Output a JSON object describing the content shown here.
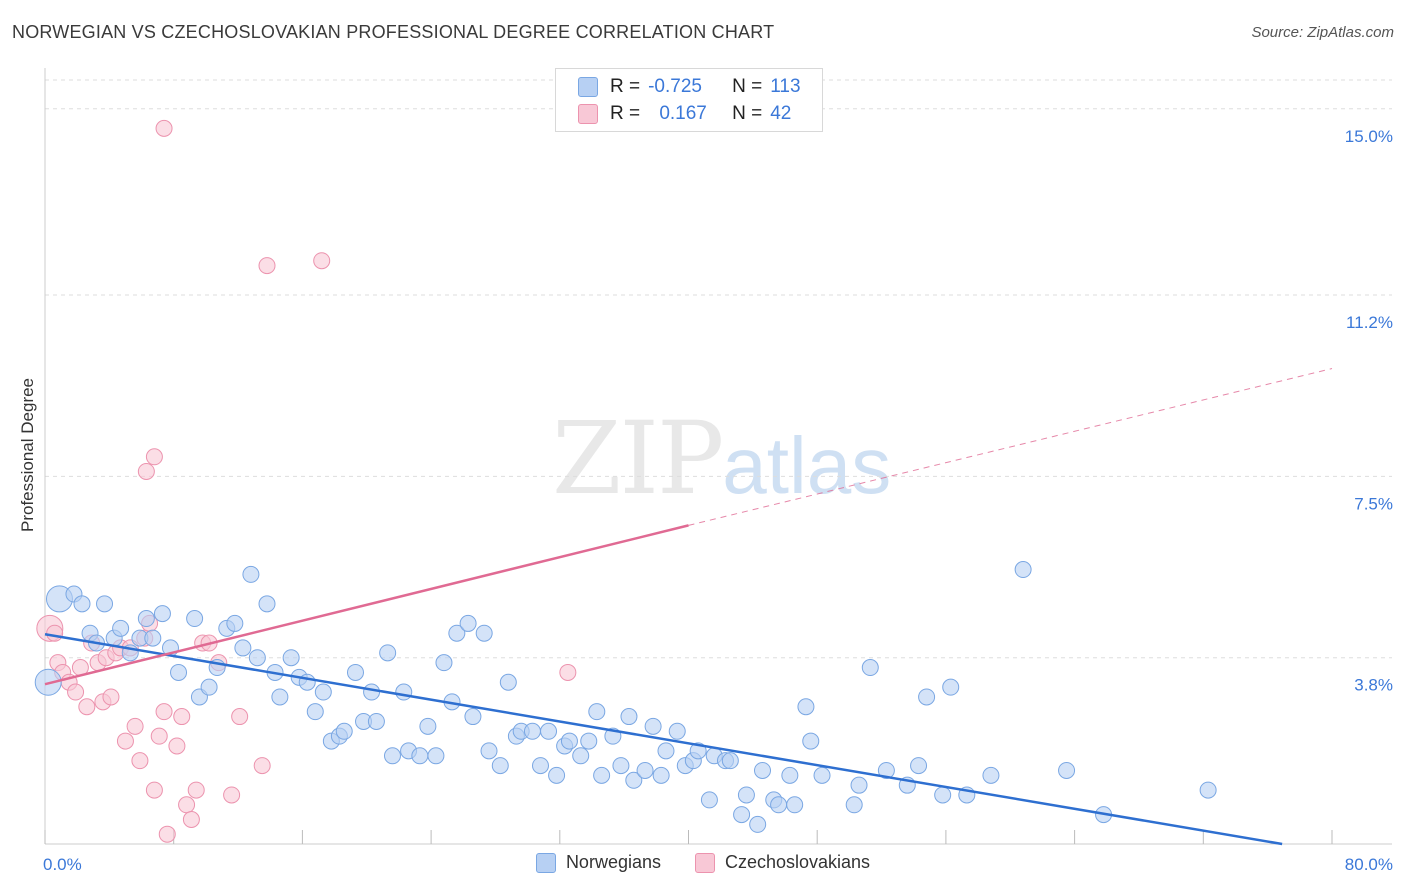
{
  "header": {
    "title": "NORWEGIAN VS CZECHOSLOVAKIAN PROFESSIONAL DEGREE CORRELATION CHART",
    "source": "Source: ZipAtlas.com"
  },
  "watermark": {
    "zip": "ZIP",
    "atlas": "atlas"
  },
  "legend_top": {
    "rows": [
      {
        "r_label": "R =",
        "r_value": "-0.725",
        "n_label": "N =",
        "n_value": "113"
      },
      {
        "r_label": "R =",
        "r_value": "0.167",
        "n_label": "N =",
        "n_value": "42"
      }
    ]
  },
  "legend_bottom": {
    "items": [
      "Norwegians",
      "Czechoslovakians"
    ]
  },
  "colors": {
    "blue_fill": "#b7d0f3",
    "blue_stroke": "#7aa7e3",
    "blue_line": "#2e6fd0",
    "pink_fill": "#f8c8d6",
    "pink_stroke": "#ec93ae",
    "pink_line": "#e06a93",
    "tick_label": "#3b78d8",
    "grid": "#dddddd"
  },
  "chart_data": {
    "type": "scatter",
    "title": "NORWEGIAN VS CZECHOSLOVAKIAN PROFESSIONAL DEGREE CORRELATION CHART",
    "xlabel": "",
    "ylabel": "Professional Degree",
    "xlim": [
      0,
      80
    ],
    "ylim": [
      0,
      15.75
    ],
    "x_tick_labels": [
      "0.0%",
      "80.0%"
    ],
    "y_ticks": [
      3.8,
      7.5,
      11.2,
      15.0
    ],
    "y_tick_labels": [
      "3.8%",
      "7.5%",
      "11.2%",
      "15.0%"
    ],
    "grid": true,
    "legend_position": "bottom",
    "series": [
      {
        "name": "Norwegians",
        "r": -0.725,
        "n": 113,
        "trend": {
          "x": [
            0,
            76.9
          ],
          "y": [
            4.28,
            0.0
          ]
        },
        "points": [
          [
            0.2,
            3.3
          ],
          [
            0.9,
            5.0
          ],
          [
            1.8,
            5.1
          ],
          [
            2.3,
            4.9
          ],
          [
            2.8,
            4.3
          ],
          [
            3.2,
            4.1
          ],
          [
            3.7,
            4.9
          ],
          [
            4.3,
            4.2
          ],
          [
            4.7,
            4.4
          ],
          [
            5.3,
            3.9
          ],
          [
            5.9,
            4.2
          ],
          [
            6.3,
            4.6
          ],
          [
            6.7,
            4.2
          ],
          [
            7.3,
            4.7
          ],
          [
            7.8,
            4.0
          ],
          [
            8.3,
            3.5
          ],
          [
            9.3,
            4.6
          ],
          [
            9.6,
            3.0
          ],
          [
            10.2,
            3.2
          ],
          [
            10.7,
            3.6
          ],
          [
            11.3,
            4.4
          ],
          [
            11.8,
            4.5
          ],
          [
            12.3,
            4.0
          ],
          [
            12.8,
            5.5
          ],
          [
            13.2,
            3.8
          ],
          [
            13.8,
            4.9
          ],
          [
            14.3,
            3.5
          ],
          [
            14.6,
            3.0
          ],
          [
            15.3,
            3.8
          ],
          [
            15.8,
            3.4
          ],
          [
            16.3,
            3.3
          ],
          [
            16.8,
            2.7
          ],
          [
            17.3,
            3.1
          ],
          [
            17.8,
            2.1
          ],
          [
            18.3,
            2.2
          ],
          [
            18.6,
            2.3
          ],
          [
            19.3,
            3.5
          ],
          [
            19.8,
            2.5
          ],
          [
            20.3,
            3.1
          ],
          [
            20.6,
            2.5
          ],
          [
            21.3,
            3.9
          ],
          [
            21.6,
            1.8
          ],
          [
            22.3,
            3.1
          ],
          [
            22.6,
            1.9
          ],
          [
            23.3,
            1.8
          ],
          [
            23.8,
            2.4
          ],
          [
            24.3,
            1.8
          ],
          [
            24.8,
            3.7
          ],
          [
            25.3,
            2.9
          ],
          [
            25.6,
            4.3
          ],
          [
            26.3,
            4.5
          ],
          [
            26.6,
            2.6
          ],
          [
            27.3,
            4.3
          ],
          [
            27.6,
            1.9
          ],
          [
            28.3,
            1.6
          ],
          [
            28.8,
            3.3
          ],
          [
            29.3,
            2.2
          ],
          [
            29.6,
            2.3
          ],
          [
            30.3,
            2.3
          ],
          [
            30.8,
            1.6
          ],
          [
            31.3,
            2.3
          ],
          [
            31.8,
            1.4
          ],
          [
            32.3,
            2.0
          ],
          [
            32.6,
            2.1
          ],
          [
            33.3,
            1.8
          ],
          [
            33.8,
            2.1
          ],
          [
            34.3,
            2.7
          ],
          [
            34.6,
            1.4
          ],
          [
            35.3,
            2.2
          ],
          [
            35.8,
            1.6
          ],
          [
            36.3,
            2.6
          ],
          [
            36.6,
            1.3
          ],
          [
            37.3,
            1.5
          ],
          [
            37.8,
            2.4
          ],
          [
            38.3,
            1.4
          ],
          [
            38.6,
            1.9
          ],
          [
            39.3,
            2.3
          ],
          [
            39.8,
            1.6
          ],
          [
            40.3,
            1.7
          ],
          [
            40.6,
            1.9
          ],
          [
            41.3,
            0.9
          ],
          [
            41.6,
            1.8
          ],
          [
            42.3,
            1.7
          ],
          [
            42.6,
            1.7
          ],
          [
            43.3,
            0.6
          ],
          [
            43.6,
            1.0
          ],
          [
            44.3,
            0.4
          ],
          [
            44.6,
            1.5
          ],
          [
            45.3,
            0.9
          ],
          [
            45.6,
            0.8
          ],
          [
            46.3,
            1.4
          ],
          [
            46.6,
            0.8
          ],
          [
            47.3,
            2.8
          ],
          [
            47.6,
            2.1
          ],
          [
            48.3,
            1.4
          ],
          [
            50.3,
            0.8
          ],
          [
            50.6,
            1.2
          ],
          [
            51.3,
            3.6
          ],
          [
            52.3,
            1.5
          ],
          [
            53.6,
            1.2
          ],
          [
            54.3,
            1.6
          ],
          [
            54.8,
            3.0
          ],
          [
            55.8,
            1.0
          ],
          [
            56.3,
            3.2
          ],
          [
            57.3,
            1.0
          ],
          [
            58.8,
            1.4
          ],
          [
            60.8,
            5.6
          ],
          [
            63.5,
            1.5
          ],
          [
            65.8,
            0.6
          ],
          [
            72.3,
            1.1
          ]
        ]
      },
      {
        "name": "Czechoslovakians",
        "r": 0.167,
        "n": 42,
        "trend": {
          "x": [
            0,
            40.0
          ],
          "y": [
            3.26,
            6.5
          ]
        },
        "trend_dashed": {
          "x": [
            40.0,
            80.0
          ],
          "y": [
            6.5,
            9.7
          ]
        },
        "points": [
          [
            0.3,
            4.4
          ],
          [
            0.6,
            4.3
          ],
          [
            0.8,
            3.7
          ],
          [
            1.1,
            3.5
          ],
          [
            1.5,
            3.3
          ],
          [
            1.9,
            3.1
          ],
          [
            2.2,
            3.6
          ],
          [
            2.6,
            2.8
          ],
          [
            2.9,
            4.1
          ],
          [
            3.3,
            3.7
          ],
          [
            3.6,
            2.9
          ],
          [
            3.8,
            3.8
          ],
          [
            4.1,
            3.0
          ],
          [
            4.4,
            3.9
          ],
          [
            4.7,
            4.0
          ],
          [
            5.0,
            2.1
          ],
          [
            5.3,
            4.0
          ],
          [
            5.6,
            2.4
          ],
          [
            5.9,
            1.7
          ],
          [
            6.2,
            4.2
          ],
          [
            6.5,
            4.5
          ],
          [
            6.8,
            1.1
          ],
          [
            7.1,
            2.2
          ],
          [
            7.4,
            2.7
          ],
          [
            7.6,
            0.2
          ],
          [
            8.2,
            2.0
          ],
          [
            8.5,
            2.6
          ],
          [
            8.8,
            0.8
          ],
          [
            9.1,
            0.5
          ],
          [
            9.4,
            1.1
          ],
          [
            6.3,
            7.6
          ],
          [
            6.8,
            7.9
          ],
          [
            7.4,
            14.6
          ],
          [
            13.8,
            11.8
          ],
          [
            17.2,
            11.9
          ],
          [
            9.8,
            4.1
          ],
          [
            10.2,
            4.1
          ],
          [
            10.8,
            3.7
          ],
          [
            11.6,
            1.0
          ],
          [
            12.1,
            2.6
          ],
          [
            13.5,
            1.6
          ],
          [
            32.5,
            3.5
          ]
        ]
      }
    ]
  }
}
